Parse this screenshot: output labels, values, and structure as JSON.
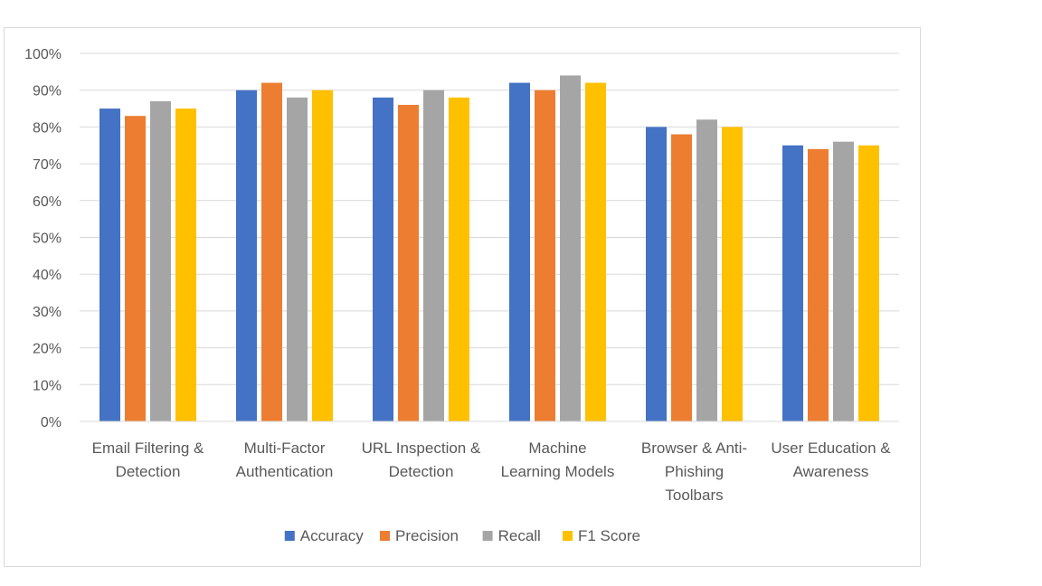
{
  "chart_data": {
    "type": "bar",
    "title": "",
    "xlabel": "",
    "ylabel": "",
    "ylim": [
      0,
      100
    ],
    "y_ticks": [
      "0%",
      "10%",
      "20%",
      "30%",
      "40%",
      "50%",
      "60%",
      "70%",
      "80%",
      "90%",
      "100%"
    ],
    "grid": true,
    "legend_position": "bottom",
    "categories": [
      [
        "Email Filtering &",
        "Detection"
      ],
      [
        "Multi-Factor",
        "Authentication"
      ],
      [
        "URL Inspection &",
        "Detection"
      ],
      [
        "Machine",
        "Learning Models"
      ],
      [
        "Browser & Anti-",
        "Phishing",
        "Toolbars"
      ],
      [
        "User Education &",
        "Awareness"
      ]
    ],
    "series": [
      {
        "name": "Accuracy",
        "color": "#4472c4",
        "values": [
          85,
          90,
          88,
          92,
          80,
          75
        ]
      },
      {
        "name": "Precision",
        "color": "#ed7d31",
        "values": [
          83,
          92,
          86,
          90,
          78,
          74
        ]
      },
      {
        "name": "Recall",
        "color": "#a5a5a5",
        "values": [
          87,
          88,
          90,
          94,
          82,
          76
        ]
      },
      {
        "name": "F1 Score",
        "color": "#ffc000",
        "values": [
          85,
          90,
          88,
          92,
          80,
          75
        ]
      }
    ]
  }
}
